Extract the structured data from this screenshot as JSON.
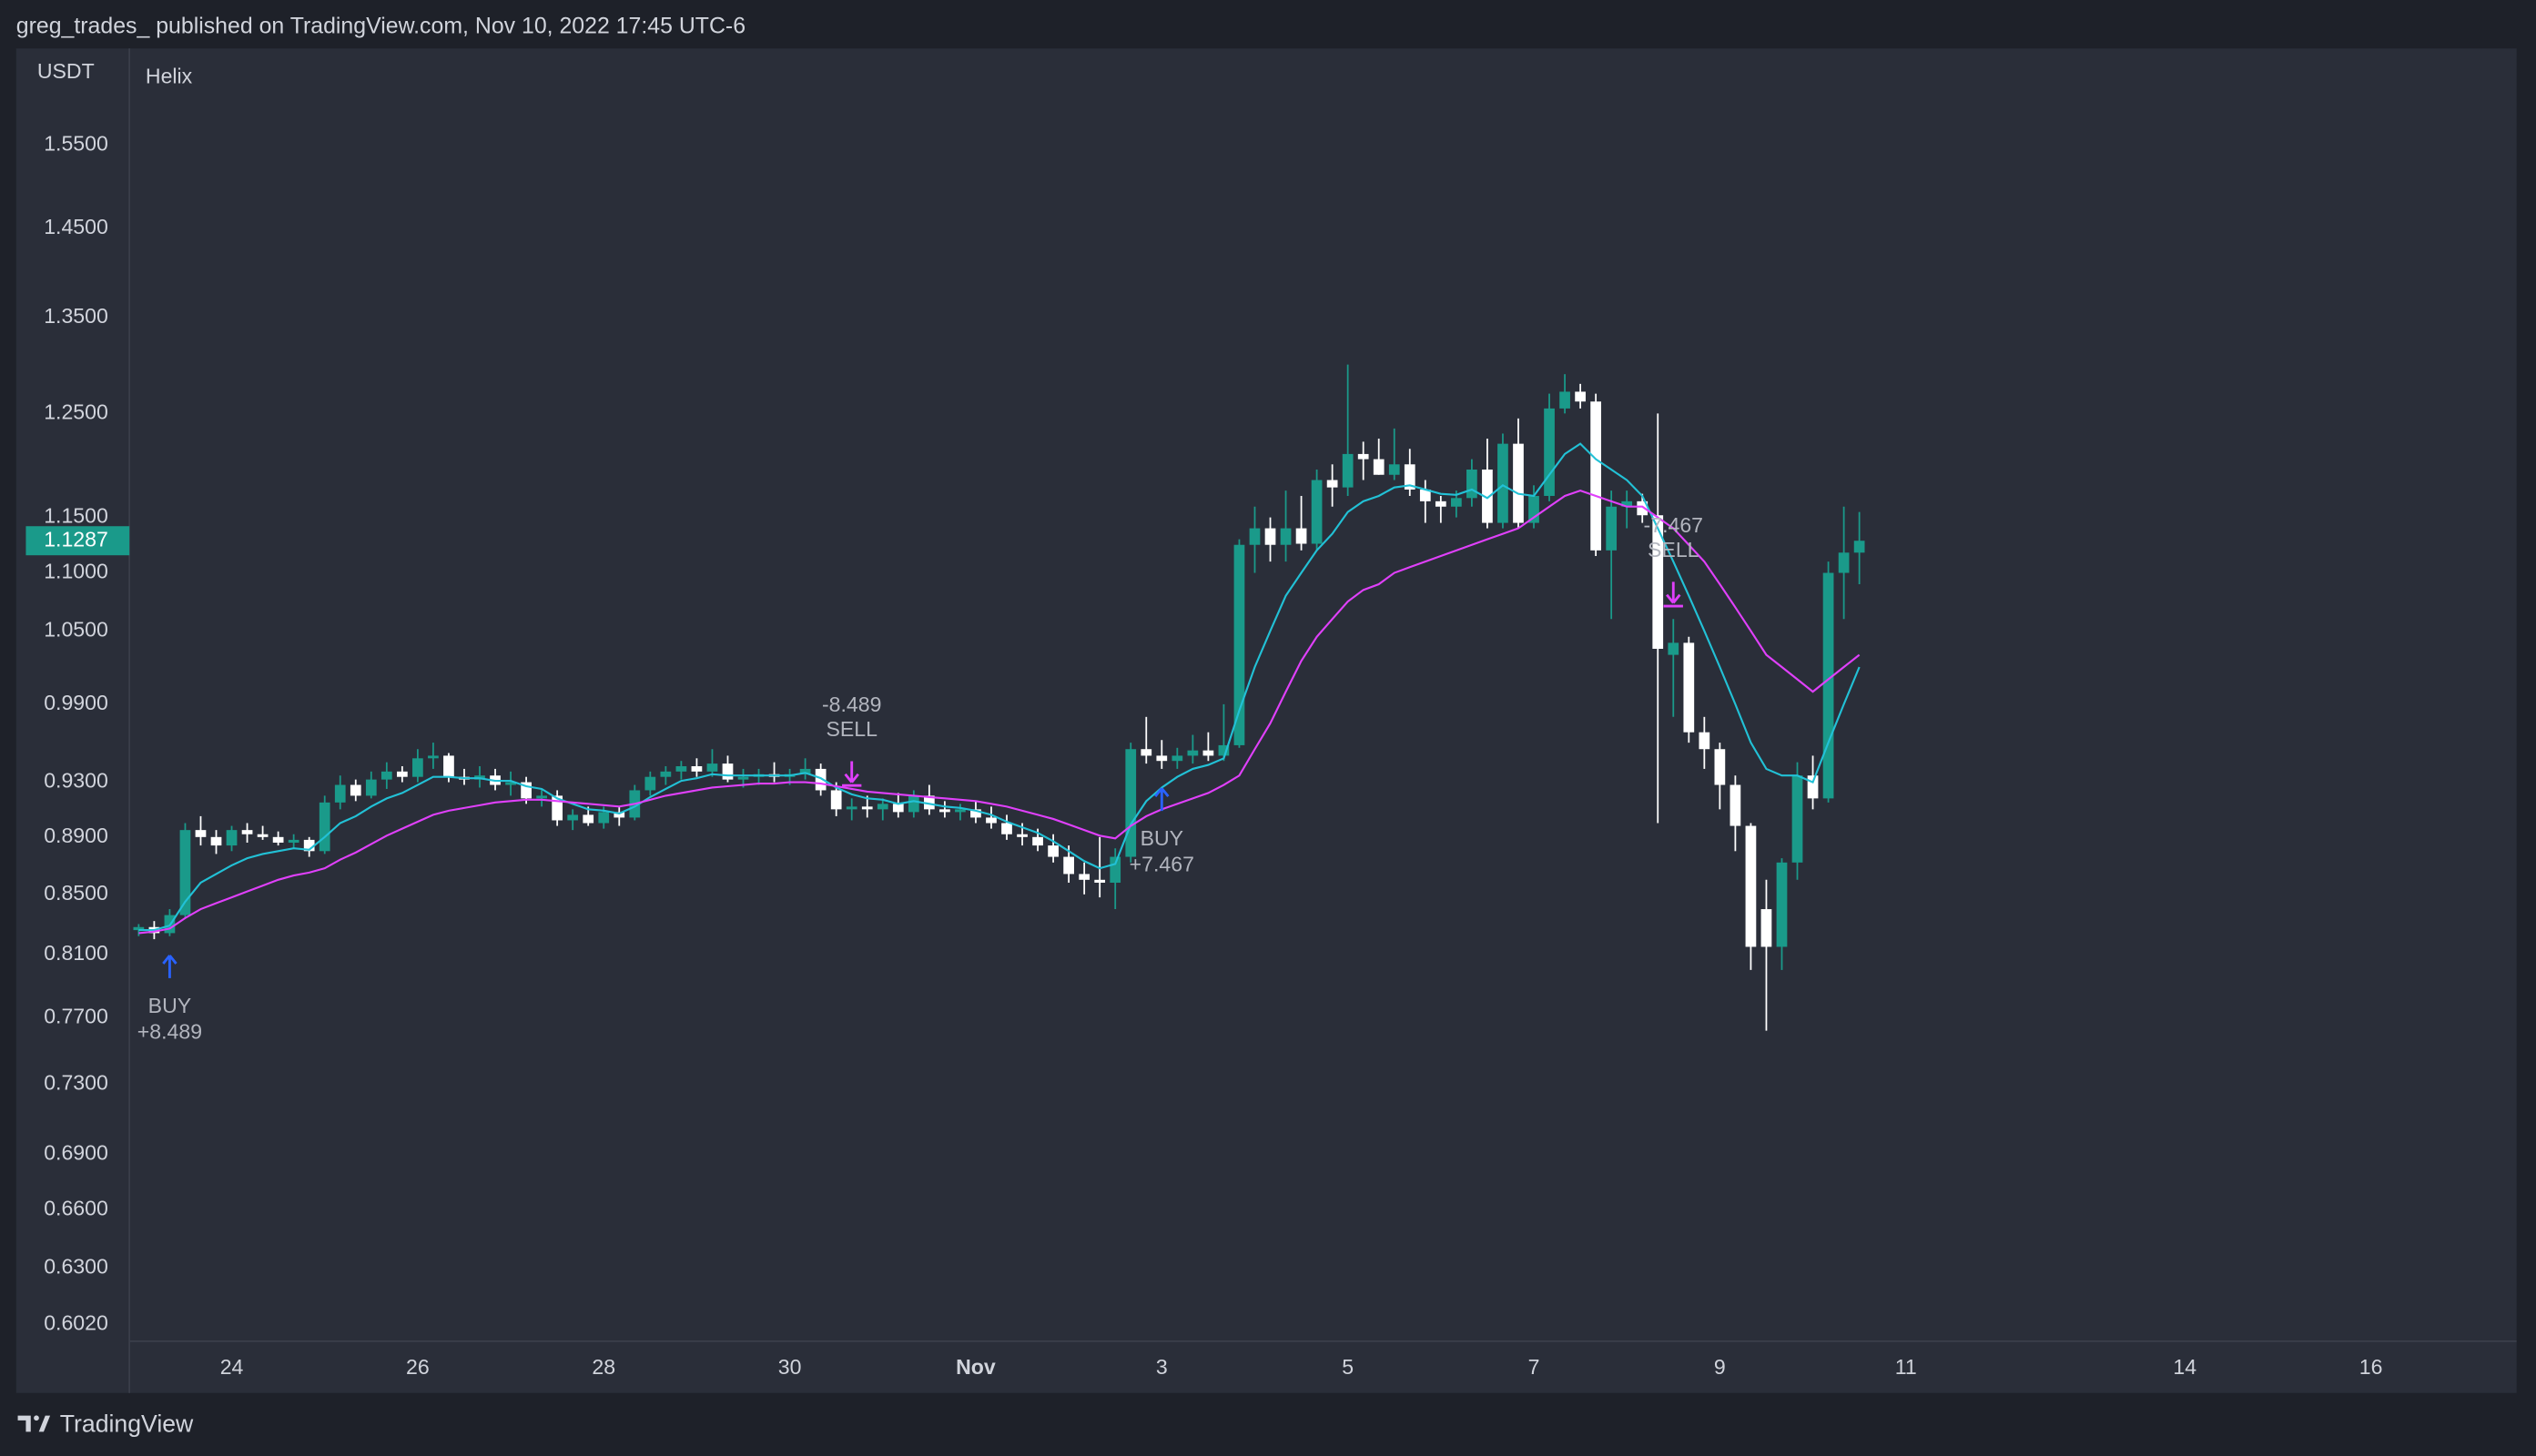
{
  "chart_data": {
    "type": "candlestick",
    "header": "greg_trades_ published on TradingView.com, Nov 10, 2022 17:45 UTC-6",
    "currency": "USDT",
    "title": "Helix",
    "brand": "TradingView",
    "log_scale": true,
    "up_color": "#1a9a8a",
    "down_color": "#ffffff",
    "last_price": 1.1287,
    "ylim": [
      0.594,
      1.675
    ],
    "yticks": [
      {
        "value": 0.602,
        "label": "0.6020"
      },
      {
        "value": 0.63,
        "label": "0.6300"
      },
      {
        "value": 0.66,
        "label": "0.6600"
      },
      {
        "value": 0.69,
        "label": "0.6900"
      },
      {
        "value": 0.73,
        "label": "0.7300"
      },
      {
        "value": 0.77,
        "label": "0.7700"
      },
      {
        "value": 0.81,
        "label": "0.8100"
      },
      {
        "value": 0.85,
        "label": "0.8500"
      },
      {
        "value": 0.89,
        "label": "0.8900"
      },
      {
        "value": 0.93,
        "label": "0.9300"
      },
      {
        "value": 0.99,
        "label": "0.9900"
      },
      {
        "value": 1.05,
        "label": "1.0500"
      },
      {
        "value": 1.1,
        "label": "1.1000"
      },
      {
        "value": 1.15,
        "label": "1.1500"
      },
      {
        "value": 1.25,
        "label": "1.2500"
      },
      {
        "value": 1.35,
        "label": "1.3500"
      },
      {
        "value": 1.45,
        "label": "1.4500"
      },
      {
        "value": 1.55,
        "label": "1.5500"
      }
    ],
    "xlim": [
      -0.6,
      153.4
    ],
    "xticks": [
      {
        "value": 6,
        "label": "24"
      },
      {
        "value": 18,
        "label": "26"
      },
      {
        "value": 30,
        "label": "28"
      },
      {
        "value": 42,
        "label": "30"
      },
      {
        "value": 54,
        "label": "Nov"
      },
      {
        "value": 66,
        "label": "3"
      },
      {
        "value": 78,
        "label": "5"
      },
      {
        "value": 90,
        "label": "7"
      },
      {
        "value": 102,
        "label": "9"
      },
      {
        "value": 114,
        "label": "11"
      },
      {
        "value": 132,
        "label": "14"
      },
      {
        "value": 144,
        "label": "16"
      }
    ],
    "candles": [
      [
        0.826,
        0.83,
        0.822,
        0.828
      ],
      [
        0.828,
        0.832,
        0.82,
        0.824
      ],
      [
        0.824,
        0.84,
        0.822,
        0.836
      ],
      [
        0.836,
        0.9,
        0.834,
        0.895
      ],
      [
        0.895,
        0.905,
        0.884,
        0.89
      ],
      [
        0.89,
        0.895,
        0.878,
        0.884
      ],
      [
        0.884,
        0.898,
        0.88,
        0.895
      ],
      [
        0.895,
        0.9,
        0.886,
        0.892
      ],
      [
        0.892,
        0.898,
        0.888,
        0.89
      ],
      [
        0.89,
        0.894,
        0.884,
        0.886
      ],
      [
        0.886,
        0.892,
        0.882,
        0.888
      ],
      [
        0.888,
        0.89,
        0.876,
        0.88
      ],
      [
        0.88,
        0.92,
        0.878,
        0.915
      ],
      [
        0.915,
        0.935,
        0.91,
        0.928
      ],
      [
        0.928,
        0.932,
        0.916,
        0.92
      ],
      [
        0.92,
        0.938,
        0.918,
        0.932
      ],
      [
        0.932,
        0.945,
        0.925,
        0.938
      ],
      [
        0.938,
        0.942,
        0.93,
        0.934
      ],
      [
        0.934,
        0.955,
        0.93,
        0.948
      ],
      [
        0.948,
        0.96,
        0.94,
        0.95
      ],
      [
        0.95,
        0.952,
        0.93,
        0.934
      ],
      [
        0.934,
        0.94,
        0.928,
        0.932
      ],
      [
        0.932,
        0.942,
        0.926,
        0.935
      ],
      [
        0.935,
        0.94,
        0.924,
        0.928
      ],
      [
        0.928,
        0.938,
        0.92,
        0.93
      ],
      [
        0.93,
        0.934,
        0.914,
        0.918
      ],
      [
        0.918,
        0.925,
        0.912,
        0.92
      ],
      [
        0.92,
        0.924,
        0.898,
        0.902
      ],
      [
        0.902,
        0.91,
        0.895,
        0.906
      ],
      [
        0.906,
        0.912,
        0.898,
        0.9
      ],
      [
        0.9,
        0.912,
        0.896,
        0.908
      ],
      [
        0.908,
        0.912,
        0.898,
        0.904
      ],
      [
        0.904,
        0.928,
        0.902,
        0.924
      ],
      [
        0.924,
        0.938,
        0.92,
        0.934
      ],
      [
        0.934,
        0.942,
        0.928,
        0.938
      ],
      [
        0.938,
        0.946,
        0.932,
        0.942
      ],
      [
        0.942,
        0.948,
        0.934,
        0.938
      ],
      [
        0.938,
        0.955,
        0.934,
        0.944
      ],
      [
        0.944,
        0.95,
        0.93,
        0.932
      ],
      [
        0.932,
        0.94,
        0.926,
        0.934
      ],
      [
        0.934,
        0.94,
        0.928,
        0.936
      ],
      [
        0.936,
        0.945,
        0.93,
        0.934
      ],
      [
        0.934,
        0.94,
        0.928,
        0.936
      ],
      [
        0.936,
        0.948,
        0.932,
        0.94
      ],
      [
        0.94,
        0.944,
        0.92,
        0.924
      ],
      [
        0.924,
        0.93,
        0.905,
        0.91
      ],
      [
        0.91,
        0.918,
        0.902,
        0.912
      ],
      [
        0.912,
        0.92,
        0.904,
        0.91
      ],
      [
        0.91,
        0.918,
        0.902,
        0.914
      ],
      [
        0.914,
        0.922,
        0.904,
        0.908
      ],
      [
        0.908,
        0.924,
        0.904,
        0.92
      ],
      [
        0.92,
        0.928,
        0.906,
        0.91
      ],
      [
        0.91,
        0.916,
        0.904,
        0.908
      ],
      [
        0.908,
        0.914,
        0.902,
        0.91
      ],
      [
        0.91,
        0.916,
        0.9,
        0.904
      ],
      [
        0.904,
        0.912,
        0.896,
        0.9
      ],
      [
        0.9,
        0.906,
        0.888,
        0.892
      ],
      [
        0.892,
        0.9,
        0.884,
        0.89
      ],
      [
        0.89,
        0.896,
        0.88,
        0.884
      ],
      [
        0.884,
        0.892,
        0.872,
        0.876
      ],
      [
        0.876,
        0.884,
        0.858,
        0.864
      ],
      [
        0.864,
        0.872,
        0.85,
        0.86
      ],
      [
        0.86,
        0.89,
        0.848,
        0.858
      ],
      [
        0.858,
        0.882,
        0.84,
        0.876
      ],
      [
        0.876,
        0.96,
        0.872,
        0.955
      ],
      [
        0.955,
        0.98,
        0.944,
        0.95
      ],
      [
        0.95,
        0.962,
        0.94,
        0.946
      ],
      [
        0.946,
        0.956,
        0.94,
        0.95
      ],
      [
        0.95,
        0.966,
        0.944,
        0.954
      ],
      [
        0.954,
        0.968,
        0.946,
        0.95
      ],
      [
        0.95,
        0.99,
        0.946,
        0.958
      ],
      [
        0.958,
        1.13,
        0.956,
        1.125
      ],
      [
        1.125,
        1.16,
        1.1,
        1.14
      ],
      [
        1.14,
        1.15,
        1.11,
        1.125
      ],
      [
        1.125,
        1.175,
        1.11,
        1.14
      ],
      [
        1.14,
        1.17,
        1.12,
        1.126
      ],
      [
        1.126,
        1.195,
        1.12,
        1.185
      ],
      [
        1.185,
        1.2,
        1.16,
        1.178
      ],
      [
        1.178,
        1.3,
        1.17,
        1.21
      ],
      [
        1.21,
        1.222,
        1.185,
        1.205
      ],
      [
        1.205,
        1.225,
        1.19,
        1.19
      ],
      [
        1.19,
        1.235,
        1.185,
        1.2
      ],
      [
        1.2,
        1.215,
        1.17,
        1.176
      ],
      [
        1.176,
        1.185,
        1.145,
        1.165
      ],
      [
        1.165,
        1.17,
        1.145,
        1.16
      ],
      [
        1.16,
        1.175,
        1.15,
        1.168
      ],
      [
        1.168,
        1.205,
        1.16,
        1.195
      ],
      [
        1.195,
        1.225,
        1.14,
        1.145
      ],
      [
        1.145,
        1.23,
        1.14,
        1.22
      ],
      [
        1.22,
        1.245,
        1.14,
        1.145
      ],
      [
        1.145,
        1.18,
        1.14,
        1.17
      ],
      [
        1.17,
        1.27,
        1.165,
        1.255
      ],
      [
        1.255,
        1.29,
        1.25,
        1.272
      ],
      [
        1.272,
        1.28,
        1.255,
        1.262
      ],
      [
        1.262,
        1.27,
        1.115,
        1.12
      ],
      [
        1.12,
        1.175,
        1.06,
        1.16
      ],
      [
        1.16,
        1.175,
        1.14,
        1.165
      ],
      [
        1.165,
        1.172,
        1.145,
        1.152
      ],
      [
        1.152,
        1.25,
        0.9,
        1.035
      ],
      [
        1.03,
        1.06,
        0.98,
        1.04
      ],
      [
        1.04,
        1.045,
        0.96,
        0.968
      ],
      [
        0.968,
        0.98,
        0.94,
        0.955
      ],
      [
        0.955,
        0.96,
        0.91,
        0.928
      ],
      [
        0.928,
        0.935,
        0.88,
        0.898
      ],
      [
        0.898,
        0.9,
        0.8,
        0.815
      ],
      [
        0.84,
        0.86,
        0.762,
        0.815
      ],
      [
        0.815,
        0.875,
        0.8,
        0.872
      ],
      [
        0.872,
        0.945,
        0.86,
        0.935
      ],
      [
        0.935,
        0.95,
        0.91,
        0.918
      ],
      [
        0.918,
        1.11,
        0.915,
        1.1
      ],
      [
        1.1,
        1.16,
        1.06,
        1.118
      ],
      [
        1.118,
        1.155,
        1.09,
        1.1287
      ]
    ],
    "series": [
      {
        "color": "#22c1d6",
        "values": [
          0.826,
          0.826,
          0.829,
          0.845,
          0.858,
          0.864,
          0.87,
          0.875,
          0.878,
          0.88,
          0.882,
          0.881,
          0.89,
          0.9,
          0.905,
          0.912,
          0.918,
          0.922,
          0.928,
          0.934,
          0.934,
          0.933,
          0.933,
          0.931,
          0.931,
          0.927,
          0.925,
          0.918,
          0.914,
          0.91,
          0.909,
          0.907,
          0.912,
          0.919,
          0.925,
          0.931,
          0.933,
          0.936,
          0.935,
          0.935,
          0.935,
          0.935,
          0.935,
          0.937,
          0.933,
          0.926,
          0.921,
          0.918,
          0.917,
          0.914,
          0.916,
          0.914,
          0.912,
          0.911,
          0.909,
          0.906,
          0.901,
          0.897,
          0.893,
          0.887,
          0.88,
          0.873,
          0.868,
          0.871,
          0.899,
          0.916,
          0.926,
          0.934,
          0.94,
          0.943,
          0.948,
          0.985,
          1.02,
          1.05,
          1.08,
          1.1,
          1.12,
          1.135,
          1.155,
          1.165,
          1.17,
          1.178,
          1.18,
          1.176,
          1.172,
          1.171,
          1.176,
          1.168,
          1.18,
          1.172,
          1.17,
          1.19,
          1.21,
          1.22,
          1.205,
          1.195,
          1.185,
          1.17,
          1.14,
          1.11,
          1.08,
          1.05,
          1.02,
          0.99,
          0.96,
          0.94,
          0.935,
          0.935,
          0.93,
          0.96,
          0.99,
          1.02
        ]
      },
      {
        "color": "#e040fb",
        "values": [
          0.824,
          0.825,
          0.827,
          0.834,
          0.84,
          0.844,
          0.848,
          0.852,
          0.856,
          0.86,
          0.863,
          0.865,
          0.868,
          0.874,
          0.879,
          0.885,
          0.891,
          0.896,
          0.901,
          0.906,
          0.909,
          0.911,
          0.913,
          0.915,
          0.916,
          0.917,
          0.917,
          0.916,
          0.915,
          0.914,
          0.913,
          0.912,
          0.914,
          0.917,
          0.92,
          0.922,
          0.924,
          0.926,
          0.927,
          0.928,
          0.929,
          0.929,
          0.93,
          0.93,
          0.929,
          0.927,
          0.925,
          0.923,
          0.922,
          0.921,
          0.92,
          0.919,
          0.918,
          0.917,
          0.916,
          0.914,
          0.912,
          0.909,
          0.906,
          0.903,
          0.899,
          0.895,
          0.891,
          0.889,
          0.898,
          0.905,
          0.91,
          0.914,
          0.918,
          0.922,
          0.928,
          0.935,
          0.955,
          0.975,
          1.0,
          1.025,
          1.045,
          1.06,
          1.075,
          1.085,
          1.09,
          1.1,
          1.105,
          1.11,
          1.115,
          1.12,
          1.125,
          1.13,
          1.135,
          1.14,
          1.15,
          1.16,
          1.17,
          1.175,
          1.17,
          1.165,
          1.16,
          1.16,
          1.15,
          1.14,
          1.125,
          1.11,
          1.09,
          1.07,
          1.05,
          1.03,
          1.02,
          1.01,
          1.0,
          1.01,
          1.02,
          1.03
        ]
      }
    ],
    "signals": [
      {
        "label": "BUY",
        "amount": "+8.489",
        "index": 2,
        "color": "#2962ff"
      },
      {
        "label": "SELL",
        "amount": "-8.489",
        "index": 46,
        "color": "#e040fb"
      },
      {
        "label": "BUY",
        "amount": "+7.467",
        "index": 66,
        "color": "#2962ff"
      },
      {
        "label": "SELL",
        "amount": "-7.467",
        "index": 99,
        "color": "#e040fb"
      }
    ]
  }
}
